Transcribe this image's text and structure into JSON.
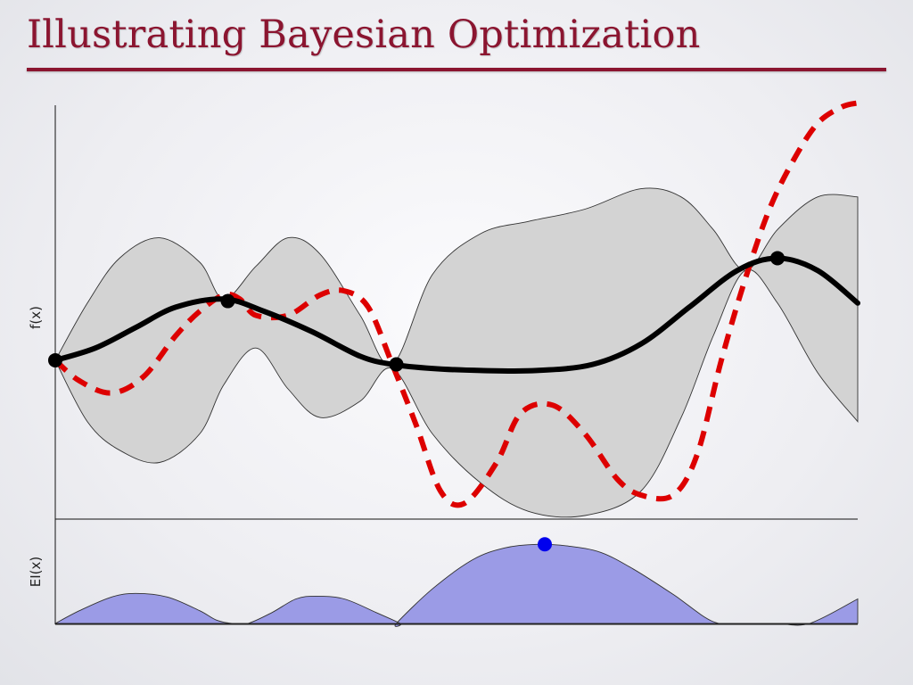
{
  "slide": {
    "title": "Illustrating Bayesian Optimization"
  },
  "colors": {
    "title": "#8b1530",
    "band_fill": "#d3d3d3",
    "mean": "#000000",
    "objective": "#dd0000",
    "ei_fill": "#9b9be6",
    "next_point": "#0000ee"
  },
  "chart_data": [
    {
      "type": "area",
      "role": "gaussian-process-posterior",
      "xlabel": "",
      "ylabel": "f(x)",
      "xlim": [
        0,
        1
      ],
      "ylim": [
        0,
        1
      ],
      "grid": false,
      "series": [
        {
          "style": "solid-line",
          "x": [
            0.0,
            0.05,
            0.1,
            0.15,
            0.21,
            0.26,
            0.32,
            0.38,
            0.42,
            0.47,
            0.53,
            0.6,
            0.67,
            0.73,
            0.79,
            0.85,
            0.9,
            0.95,
            1.0
          ],
          "values": [
            0.38,
            0.41,
            0.46,
            0.51,
            0.53,
            0.5,
            0.45,
            0.39,
            0.37,
            0.36,
            0.355,
            0.355,
            0.37,
            0.42,
            0.51,
            0.6,
            0.63,
            0.6,
            0.52
          ]
        },
        {
          "style": "dashed-line",
          "x": [
            0.0,
            0.03,
            0.07,
            0.11,
            0.15,
            0.18,
            0.21,
            0.23,
            0.25,
            0.29,
            0.33,
            0.36,
            0.39,
            0.42,
            0.45,
            0.48,
            0.51,
            0.55,
            0.58,
            0.62,
            0.66,
            0.7,
            0.73,
            0.77,
            0.8,
            0.83,
            0.86,
            0.89,
            0.92,
            0.95,
            0.98,
            1.0
          ],
          "values": [
            0.38,
            0.33,
            0.3,
            0.34,
            0.44,
            0.5,
            0.54,
            0.53,
            0.49,
            0.49,
            0.54,
            0.55,
            0.51,
            0.37,
            0.22,
            0.06,
            0.03,
            0.13,
            0.25,
            0.27,
            0.2,
            0.09,
            0.05,
            0.05,
            0.15,
            0.38,
            0.58,
            0.75,
            0.87,
            0.96,
            1.0,
            1.01
          ]
        },
        {
          "style": "band-upper",
          "x": [
            0.0,
            0.04,
            0.08,
            0.13,
            0.18,
            0.21,
            0.25,
            0.29,
            0.33,
            0.38,
            0.42,
            0.47,
            0.53,
            0.59,
            0.66,
            0.73,
            0.78,
            0.82,
            0.86,
            0.9,
            0.95,
            1.0
          ],
          "values": [
            0.38,
            0.52,
            0.63,
            0.68,
            0.62,
            0.53,
            0.61,
            0.68,
            0.64,
            0.49,
            0.37,
            0.59,
            0.69,
            0.72,
            0.75,
            0.8,
            0.78,
            0.7,
            0.6,
            0.7,
            0.78,
            0.78
          ]
        },
        {
          "style": "band-lower",
          "x": [
            0.0,
            0.04,
            0.08,
            0.13,
            0.18,
            0.21,
            0.25,
            0.29,
            0.33,
            0.38,
            0.42,
            0.47,
            0.53,
            0.59,
            0.66,
            0.73,
            0.78,
            0.82,
            0.86,
            0.9,
            0.95,
            1.0
          ],
          "values": [
            0.38,
            0.23,
            0.16,
            0.13,
            0.2,
            0.32,
            0.41,
            0.31,
            0.24,
            0.28,
            0.36,
            0.2,
            0.08,
            0.01,
            0.0,
            0.06,
            0.24,
            0.44,
            0.6,
            0.52,
            0.35,
            0.23
          ]
        },
        {
          "style": "observations",
          "x": [
            0.0,
            0.215,
            0.425,
            0.9
          ],
          "values": [
            0.38,
            0.525,
            0.37,
            0.63
          ]
        }
      ]
    },
    {
      "type": "area",
      "role": "acquisition-function",
      "xlabel": "",
      "ylabel": "EI(x)",
      "xlim": [
        0,
        1
      ],
      "ylim": [
        0,
        1
      ],
      "grid": false,
      "series": [
        {
          "style": "filled-area",
          "x": [
            0.0,
            0.03,
            0.07,
            0.1,
            0.14,
            0.18,
            0.2,
            0.22,
            0.24,
            0.27,
            0.3,
            0.325,
            0.36,
            0.4,
            0.43,
            0.425,
            0.47,
            0.52,
            0.56,
            0.6,
            0.64,
            0.68,
            0.72,
            0.77,
            0.82,
            0.86,
            0.9,
            0.94,
            1.0
          ],
          "values": [
            0.0,
            0.14,
            0.29,
            0.33,
            0.29,
            0.14,
            0.04,
            0.0,
            0.0,
            0.12,
            0.27,
            0.3,
            0.27,
            0.12,
            0.0,
            0.0,
            0.38,
            0.7,
            0.83,
            0.87,
            0.85,
            0.78,
            0.6,
            0.32,
            0.02,
            0.0,
            0.0,
            0.0,
            0.27
          ]
        },
        {
          "style": "maximum-marker",
          "x": [
            0.61
          ],
          "values": [
            0.87
          ]
        }
      ]
    }
  ]
}
